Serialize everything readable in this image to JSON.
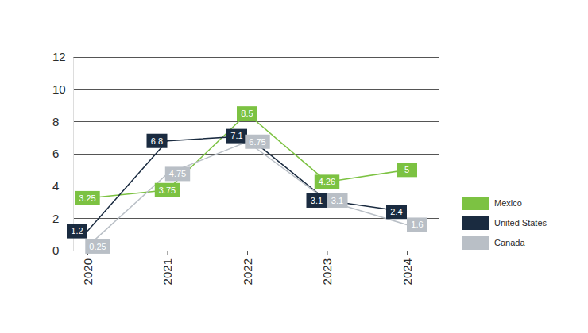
{
  "chart_data": {
    "type": "line",
    "categories": [
      "2020",
      "2021",
      "2022",
      "2023",
      "2024"
    ],
    "series": [
      {
        "name": "Mexico",
        "color": "#7cc242",
        "values": [
          3.25,
          3.75,
          8.5,
          4.26,
          5
        ]
      },
      {
        "name": "United States",
        "color": "#1a2b40",
        "values": [
          1.2,
          6.8,
          7.1,
          3.1,
          2.4
        ]
      },
      {
        "name": "Canada",
        "color": "#b9bfc6",
        "values": [
          0.25,
          4.75,
          6.75,
          3.1,
          1.6
        ]
      }
    ],
    "ylim": [
      0,
      12
    ],
    "yticks": [
      0,
      2,
      4,
      6,
      8,
      10,
      12
    ],
    "grid": true,
    "legend": "right",
    "data_labels": true
  }
}
